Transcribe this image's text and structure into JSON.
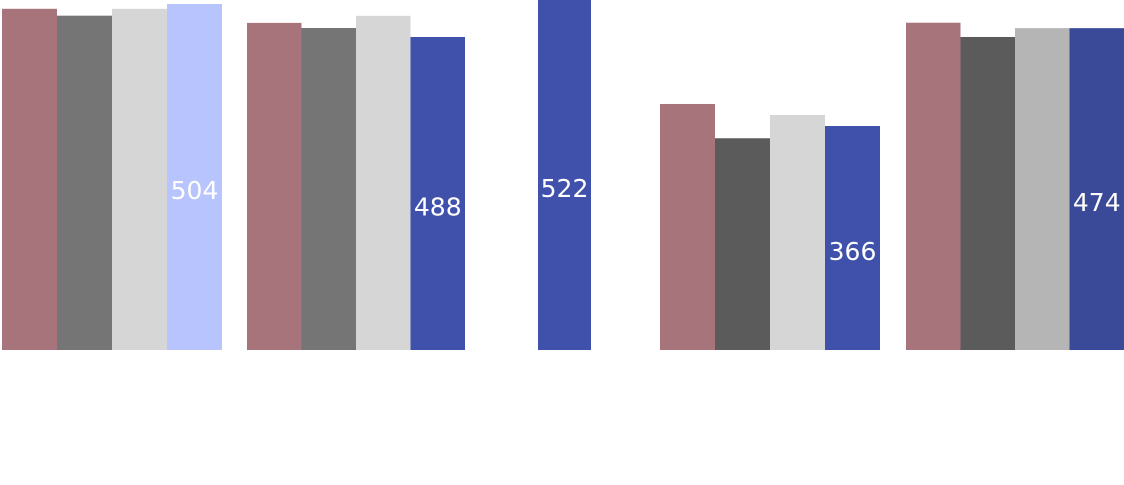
{
  "chart_data": {
    "type": "bar",
    "title": "",
    "xlabel": "",
    "ylabel": "",
    "grid": false,
    "legend": "none",
    "groups": [
      {
        "values": [
          497,
          487,
          497,
          504
        ],
        "colors": [
          "#a8747c",
          "#757575",
          "#d6d6d6",
          "#b8c4fe"
        ],
        "label": "504"
      },
      {
        "values": [
          510,
          502,
          521,
          488
        ],
        "colors": [
          "#a8747c",
          "#757575",
          "#d6d6d6",
          "#3f51aa"
        ],
        "label": "488"
      },
      {
        "values": [
          522
        ],
        "colors": [
          "#3f51aa"
        ],
        "label": "522"
      },
      {
        "values": [
          402,
          346,
          384,
          366
        ],
        "colors": [
          "#a8747c",
          "#5b5b5b",
          "#d6d6d6",
          "#3f51aa"
        ],
        "label": "366"
      },
      {
        "values": [
          482,
          461,
          474,
          474
        ],
        "colors": [
          "#a8747c",
          "#5b5b5b",
          "#b5b5b5",
          "#3a4a98"
        ],
        "label": "474"
      }
    ]
  }
}
